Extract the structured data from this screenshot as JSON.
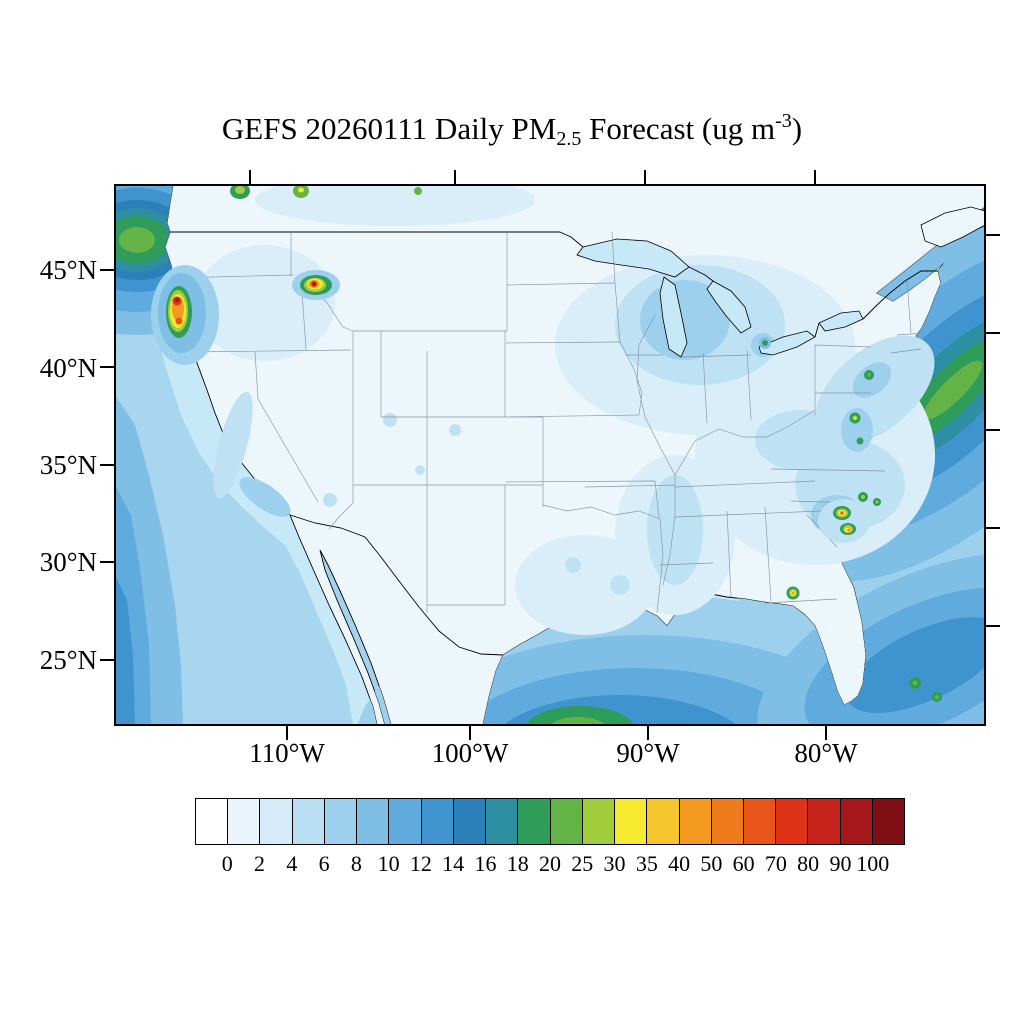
{
  "title": {
    "prefix": "GEFS 20260111 Daily PM",
    "subscript": "2.5",
    "middle": " Forecast (ug m",
    "superscript": "-3",
    "suffix": ")"
  },
  "axes": {
    "lat_labels": [
      "45°N",
      "40°N",
      "35°N",
      "30°N",
      "25°N"
    ],
    "lon_labels": [
      "110°W",
      "100°W",
      "90°W",
      "80°W"
    ]
  },
  "chart_data": {
    "type": "heatmap",
    "title": "GEFS 20260111 Daily PM2.5 Forecast (ug m-3)",
    "model": "GEFS",
    "date": "20260111",
    "variable": "PM2.5",
    "units": "ug m-3",
    "levels": [
      0,
      2,
      4,
      6,
      8,
      10,
      12,
      14,
      16,
      18,
      20,
      25,
      30,
      35,
      40,
      50,
      60,
      70,
      80,
      90,
      100
    ],
    "palette": [
      "#FFFFFF",
      "#EAF5FB",
      "#D6ECF8",
      "#BADFF3",
      "#9CD0ED",
      "#7FBFE6",
      "#5FABDD",
      "#3F93CE",
      "#2C7FB8",
      "#2E8FA3",
      "#2F9C59",
      "#63B347",
      "#A2CE3D",
      "#F7EB2F",
      "#F5C62B",
      "#F29B20",
      "#ED7B1C",
      "#E8551A",
      "#DF3317",
      "#C6221C",
      "#A5171B",
      "#7E0F14"
    ],
    "lat_ticks": [
      "25N",
      "30N",
      "35N",
      "40N",
      "45N"
    ],
    "lon_ticks": [
      "110W",
      "100W",
      "90W",
      "80W"
    ],
    "background": "Most land 0-8 ug m-3; oceans 2-20 ug m-3 with banded gradients",
    "hotspots": [
      {
        "region": "Northern California / Southern Oregon",
        "approx_peak": "60-100+"
      },
      {
        "region": "Western Montana",
        "approx_peak": "70-100"
      },
      {
        "region": "Central Georgia",
        "approx_peak": "35-60"
      },
      {
        "region": "Gulf Coast near AL/FL border",
        "approx_peak": "25-40"
      },
      {
        "region": "New York City metro",
        "approx_peak": "16-20"
      },
      {
        "region": "Baltimore / Washington DC area",
        "approx_peak": "20-30"
      },
      {
        "region": "Pacific Northwest offshore",
        "approx_peak": "16-25"
      },
      {
        "region": "Western Atlantic offshore",
        "approx_peak": "16-25"
      },
      {
        "region": "Central Gulf of Mexico",
        "approx_peak": "16-30"
      }
    ]
  }
}
